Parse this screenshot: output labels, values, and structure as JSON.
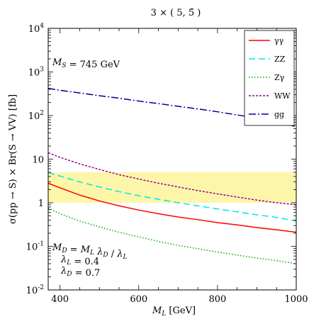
{
  "chart_data": {
    "type": "line",
    "title": "3 × ( 5, 5̄ )",
    "xlabel": "M_L [GeV]",
    "ylabel": "σ(pp → S) × Br(S → VV) [fb]",
    "x_scale": "linear",
    "y_scale": "log",
    "xlim": [
      370,
      1000
    ],
    "ylim": [
      0.01,
      10000
    ],
    "x_ticks": [
      "400",
      "600",
      "800",
      "1000"
    ],
    "y_ticks": [
      {
        "base": "10",
        "exp": "-2",
        "value": 0.01
      },
      {
        "base": "10",
        "exp": "-1",
        "value": 0.1
      },
      {
        "base": "1",
        "exp": "",
        "value": 1
      },
      {
        "base": "10",
        "exp": "",
        "value": 10
      },
      {
        "base": "10",
        "exp": "2",
        "value": 100
      },
      {
        "base": "10",
        "exp": "3",
        "value": 1000
      },
      {
        "base": "10",
        "exp": "4",
        "value": 10000
      }
    ],
    "band": {
      "y_low": 1.0,
      "y_high": 5.0,
      "color": "#fdf6a8"
    },
    "annotations": {
      "mass": "M_S = 745 GeV",
      "relation": "M_D = M_L λ_D / λ_L",
      "lambda_l": "λ_L = 0.4",
      "lambda_d": "λ_D = 0.7"
    },
    "legend_position": "top-right",
    "x": [
      370,
      400,
      450,
      500,
      550,
      600,
      650,
      700,
      750,
      800,
      850,
      900,
      950,
      1000
    ],
    "series": [
      {
        "name": "γγ",
        "color": "#ff0000",
        "dash": "solid",
        "values": [
          2.8,
          2.2,
          1.5,
          1.1,
          0.85,
          0.68,
          0.56,
          0.47,
          0.41,
          0.35,
          0.31,
          0.27,
          0.24,
          0.21
        ]
      },
      {
        "name": "ZZ",
        "color": "#00e6e6",
        "dash": "long-dash",
        "values": [
          4.9,
          4.1,
          3.0,
          2.3,
          1.8,
          1.45,
          1.2,
          1.0,
          0.85,
          0.72,
          0.62,
          0.53,
          0.46,
          0.38
        ]
      },
      {
        "name": "Zγ",
        "color": "#00b000",
        "dash": "dot",
        "values": [
          0.75,
          0.56,
          0.38,
          0.28,
          0.21,
          0.165,
          0.13,
          0.105,
          0.088,
          0.074,
          0.063,
          0.054,
          0.047,
          0.04
        ]
      },
      {
        "name": "WW",
        "color": "#990099",
        "dash": "short-dash",
        "values": [
          14,
          11,
          7.8,
          5.8,
          4.4,
          3.5,
          2.8,
          2.3,
          1.9,
          1.6,
          1.35,
          1.15,
          1.0,
          0.9
        ]
      },
      {
        "name": "gg",
        "color": "#000099",
        "dash": "dash-dot",
        "values": [
          420,
          380,
          330,
          285,
          250,
          215,
          188,
          163,
          142,
          122,
          103,
          88,
          75,
          55
        ]
      }
    ]
  }
}
